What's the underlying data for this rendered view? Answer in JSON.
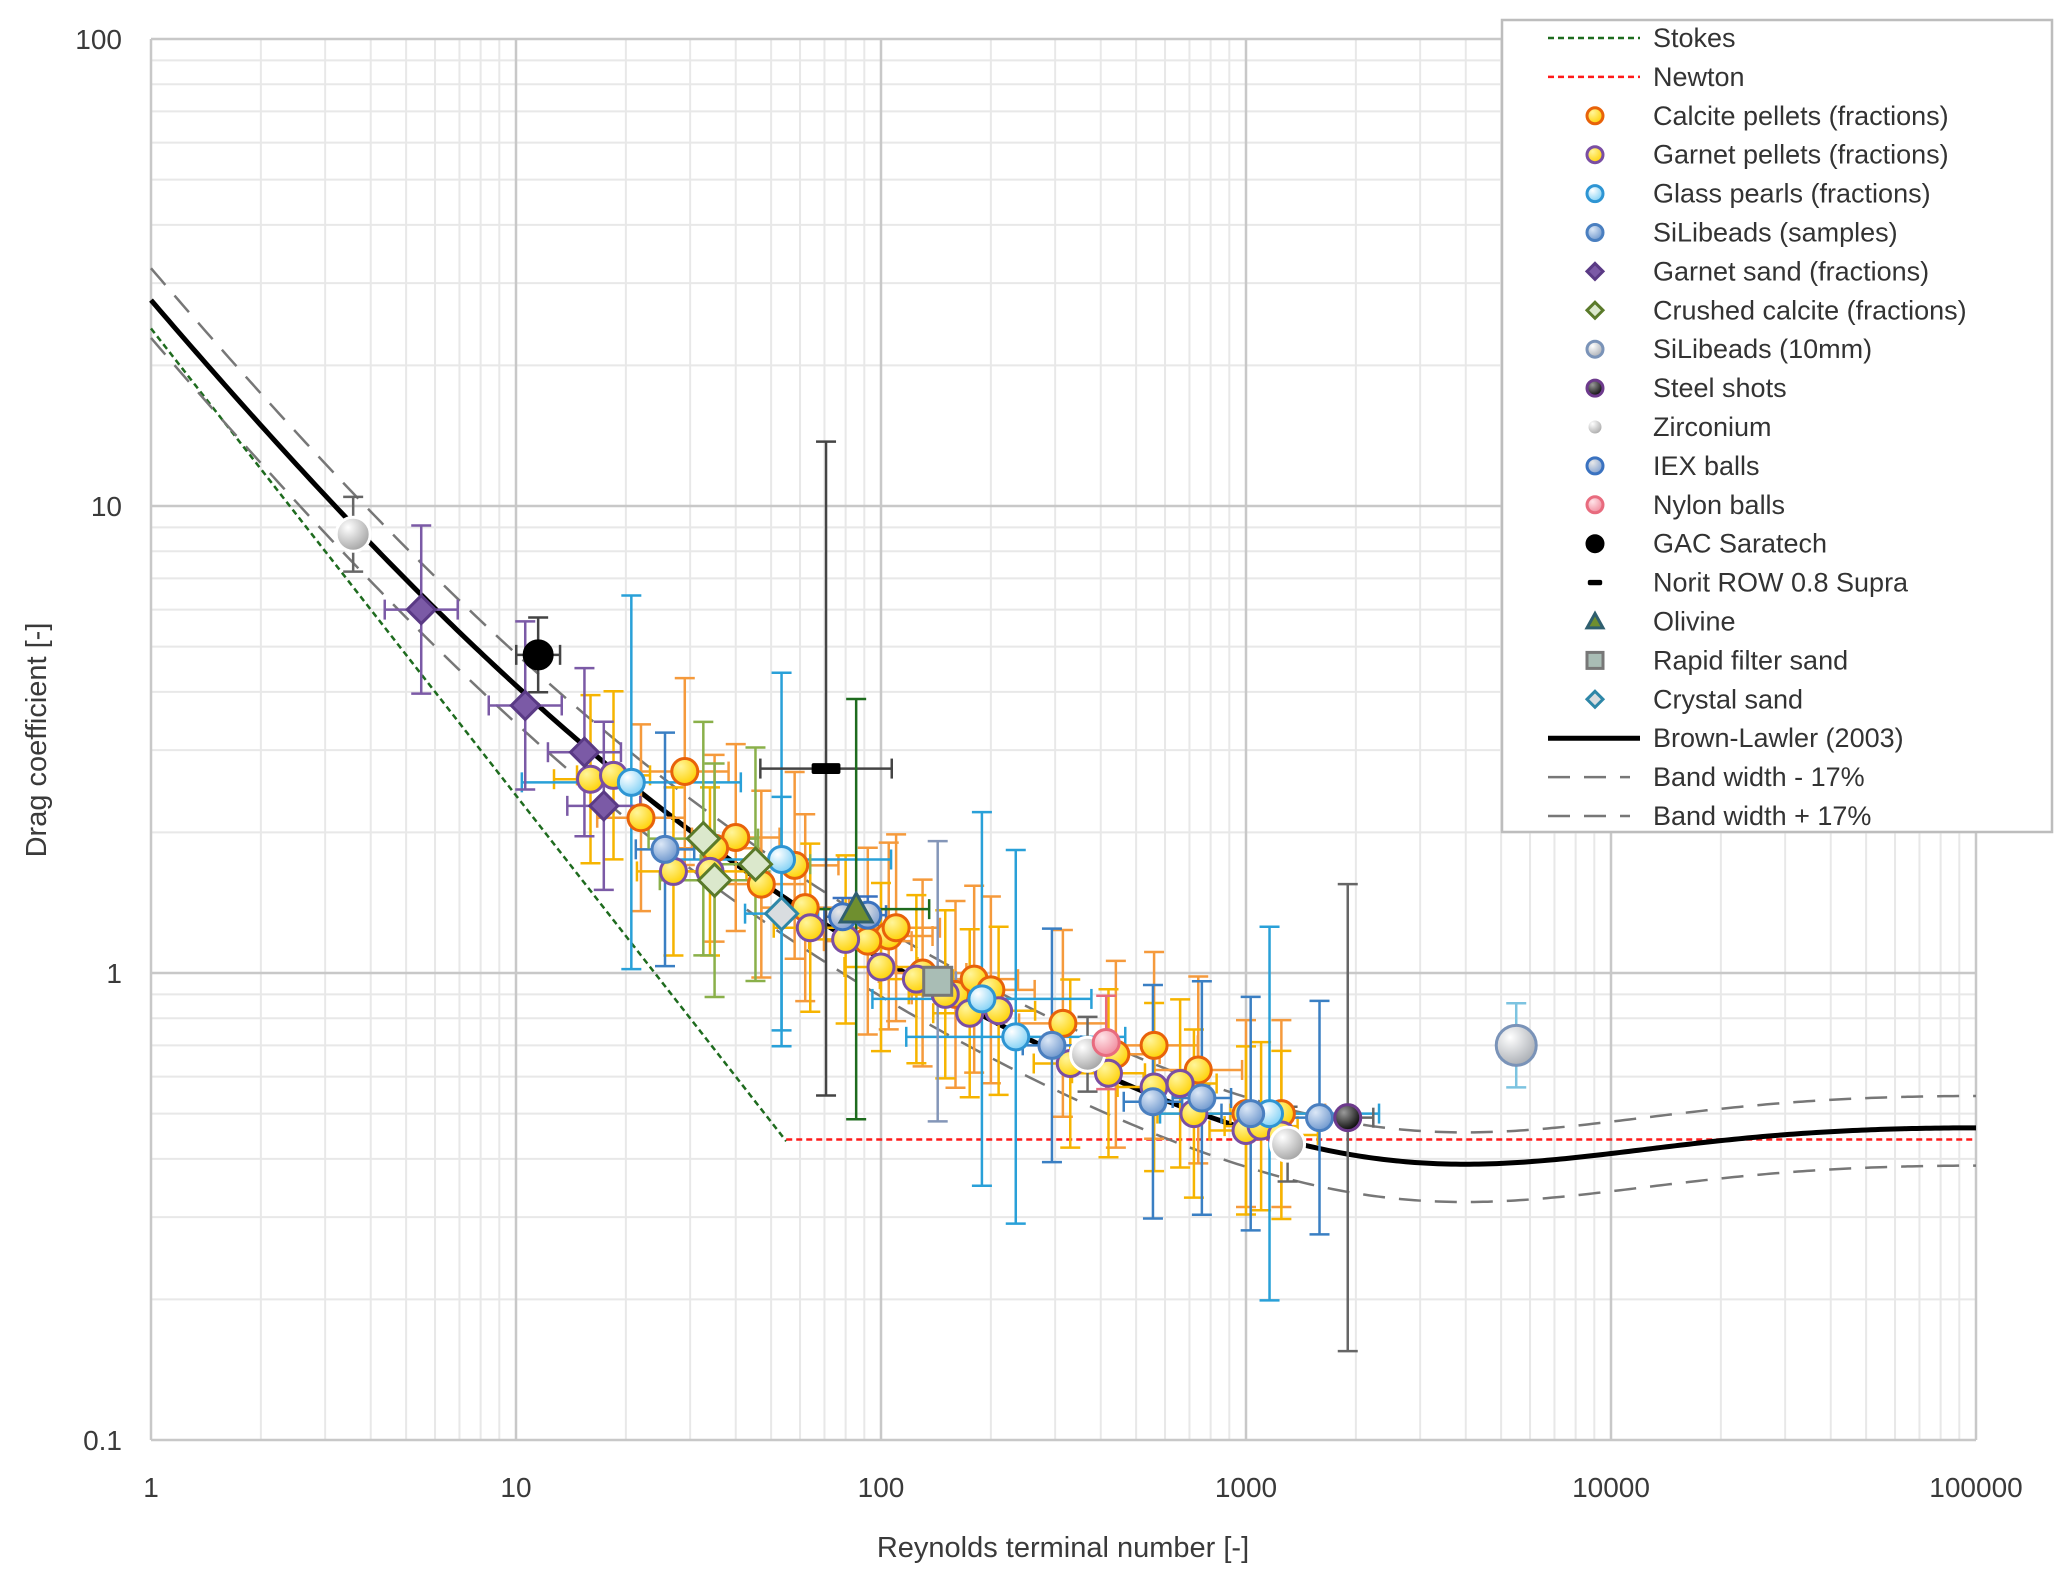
{
  "chart_data": {
    "type": "scatter",
    "title": "",
    "xlabel": "Reynolds terminal number  [-]",
    "ylabel": "Drag coefficient [-]",
    "xscale": "log",
    "yscale": "log",
    "xlim": [
      1,
      100000
    ],
    "ylim": [
      0.1,
      100
    ],
    "x_ticks": [
      "1",
      "10",
      "100",
      "1000",
      "10000",
      "100000"
    ],
    "y_ticks": [
      "0.1",
      "1",
      "10",
      "100"
    ],
    "grid": "major and minor",
    "legend_position": "top-right",
    "lines": [
      {
        "name": "Stokes",
        "color": "#1e6b1e",
        "style": "dotted",
        "formula": "24/Re",
        "x_range": [
          1,
          55
        ]
      },
      {
        "name": "Newton",
        "color": "#ff1a1a",
        "style": "dotted",
        "formula": "0.44",
        "x_range": [
          55,
          100000
        ]
      },
      {
        "name": "Brown-Lawler (2003)",
        "color": "#000000",
        "style": "solid",
        "formula": "24/Re*(1+0.15*Re^0.681)+0.407/(1+8710/Re)",
        "x_range": [
          1,
          100000
        ]
      },
      {
        "name": "Band width - 17%",
        "color": "#777777",
        "style": "dashed",
        "factor": 0.83,
        "x_range": [
          1,
          100000
        ]
      },
      {
        "name": "Band width + 17%",
        "color": "#777777",
        "style": "dashed",
        "factor": 1.17,
        "x_range": [
          1,
          100000
        ]
      }
    ],
    "series": [
      {
        "name": "Calcite pellets (fractions)",
        "marker": "circle",
        "fill": "#ffd700",
        "stroke": "#e8620a",
        "err_color": "#f59a3c",
        "points": [
          [
            29,
            2.7
          ],
          [
            22,
            2.15
          ],
          [
            40,
            1.95
          ],
          [
            58,
            1.7
          ],
          [
            62,
            1.38
          ],
          [
            47,
            1.55
          ],
          [
            105,
            1.2
          ],
          [
            110,
            1.25
          ],
          [
            92,
            1.17
          ],
          [
            130,
            1.0
          ],
          [
            160,
            0.9
          ],
          [
            180,
            0.97
          ],
          [
            200,
            0.92
          ],
          [
            315,
            0.78
          ],
          [
            440,
            0.67
          ],
          [
            560,
            0.7
          ],
          [
            740,
            0.62
          ],
          [
            1000,
            0.5
          ],
          [
            1250,
            0.5
          ],
          [
            35,
            1.85
          ]
        ],
        "x_err": 0.12,
        "y_err": 0.2
      },
      {
        "name": "Garnet pellets (fractions)",
        "marker": "circle",
        "fill": "#ffd700",
        "stroke": "#7a4ea3",
        "err_color": "#f6b400",
        "points": [
          [
            16,
            2.6
          ],
          [
            18.5,
            2.65
          ],
          [
            27,
            1.65
          ],
          [
            34,
            1.65
          ],
          [
            64,
            1.25
          ],
          [
            80,
            1.18
          ],
          [
            100,
            1.03
          ],
          [
            125,
            0.97
          ],
          [
            150,
            0.9
          ],
          [
            175,
            0.82
          ],
          [
            210,
            0.83
          ],
          [
            330,
            0.64
          ],
          [
            420,
            0.61
          ],
          [
            560,
            0.57
          ],
          [
            660,
            0.58
          ],
          [
            720,
            0.5
          ],
          [
            1000,
            0.46
          ],
          [
            1100,
            0.47
          ],
          [
            1250,
            0.45
          ]
        ],
        "x_err": 0.1,
        "y_err": 0.18
      },
      {
        "name": "Glass pearls (fractions)",
        "marker": "circle",
        "fill": "#bfe9ff",
        "stroke": "#2e95d3",
        "err_color": "#29a0d8",
        "points": [
          [
            20.7,
            2.56
          ],
          [
            53.4,
            1.75
          ],
          [
            189,
            0.88
          ],
          [
            234,
            0.73
          ],
          [
            1160,
            0.5
          ]
        ],
        "x_err": 0.3,
        "y_err": 0.4
      },
      {
        "name": "SiLibeads (samples)",
        "marker": "circle",
        "fill": "#9dbde3",
        "stroke": "#4a7fc0",
        "err_color": "#3a7fc3",
        "points": [
          [
            25.6,
            1.84
          ],
          [
            294,
            0.7
          ],
          [
            556,
            0.53
          ],
          [
            757,
            0.54
          ],
          [
            1030,
            0.5
          ],
          [
            1590,
            0.49
          ]
        ],
        "x_err": 0.08,
        "y_err": 0.25
      },
      {
        "name": "Garnet sand (fractions)",
        "marker": "diamond",
        "fill": "#7b5aa6",
        "stroke": "#5a3a85",
        "err_color": "#7b5aa6",
        "points": [
          [
            5.5,
            6.0
          ],
          [
            10.6,
            3.74
          ],
          [
            15.4,
            2.97
          ],
          [
            17.4,
            2.28
          ]
        ],
        "x_err": 0.1,
        "y_err": 0.18
      },
      {
        "name": "Crushed calcite (fractions)",
        "marker": "diamond",
        "fill": "#dbe8cc",
        "stroke": "#5a7a2a",
        "err_color": "#8ab04a",
        "points": [
          [
            32.6,
            1.94
          ],
          [
            35,
            1.58
          ],
          [
            45.3,
            1.71
          ]
        ],
        "x_err": 0.15,
        "y_err": 0.25
      },
      {
        "name": "SiLibeads (10mm)",
        "marker": "circle",
        "fill": "#d4d6da",
        "stroke": "#7a93b8",
        "err_color": "#7cc3e0",
        "points": [
          [
            5500,
            0.7
          ]
        ],
        "x_err": 0.0,
        "y_err": 0.09
      },
      {
        "name": "Steel shots",
        "marker": "circle",
        "fill": "#1a1a1a",
        "stroke": "#6d3a8c",
        "err_color": "#666666",
        "points": [
          [
            1900,
            0.49
          ]
        ],
        "x_err": 0.07,
        "y_err": 0.5
      },
      {
        "name": "Zirconium",
        "marker": "circle",
        "fill": "#e6e6e6",
        "stroke": "#ffffff",
        "err_color": "#666666",
        "points": [
          [
            3.58,
            8.7
          ],
          [
            368,
            0.67
          ],
          [
            1300,
            0.43
          ]
        ],
        "x_err": 0.02,
        "y_err": 0.08
      },
      {
        "name": "IEX balls",
        "marker": "circle",
        "fill": "#b8c4d4",
        "stroke": "#3a72c0",
        "err_color": "#3a72c0",
        "points": [
          [
            92,
            1.33
          ],
          [
            78.5,
            1.32
          ]
        ],
        "x_err": 0.05,
        "y_err": 0.04
      },
      {
        "name": "Nylon balls",
        "marker": "circle",
        "fill": "#f7b3bd",
        "stroke": "#e86b7e",
        "err_color": "#e86b7e",
        "points": [
          [
            414,
            0.71
          ]
        ],
        "x_err": 0.0,
        "y_err": 0.1
      },
      {
        "name": "GAC Saratech",
        "marker": "circle",
        "fill": "#000000",
        "stroke": "#000000",
        "err_color": "#444444",
        "points": [
          [
            11.5,
            4.8
          ]
        ],
        "x_err": 0.06,
        "y_err": 0.08
      },
      {
        "name": "Norit ROW 0.8 Supra",
        "marker": "dash",
        "fill": "#000000",
        "stroke": "#000000",
        "err_color": "#444444",
        "points": [
          [
            70.7,
            2.74
          ]
        ],
        "x_err": 0.18,
        "y_err": 0.7
      },
      {
        "name": "Olivine",
        "marker": "triangle",
        "fill": "#6f8f2f",
        "stroke": "#2f5f6f",
        "err_color": "#1e6b1e",
        "points": [
          [
            85.5,
            1.37
          ]
        ],
        "x_err": 0.2,
        "y_err": 0.45
      },
      {
        "name": "Rapid filter sand",
        "marker": "square",
        "fill": "#a9bdb5",
        "stroke": "#777777",
        "err_color": "#8496b8",
        "points": [
          [
            143,
            0.96
          ]
        ],
        "x_err": 0.05,
        "y_err": 0.3
      },
      {
        "name": "Crystal sand",
        "marker": "diamond",
        "fill": "#d9dde0",
        "stroke": "#2e87a8",
        "err_color": "#29a0d8",
        "points": [
          [
            53.4,
            1.34
          ]
        ],
        "x_err": 0.1,
        "y_err": 0.25
      }
    ]
  }
}
